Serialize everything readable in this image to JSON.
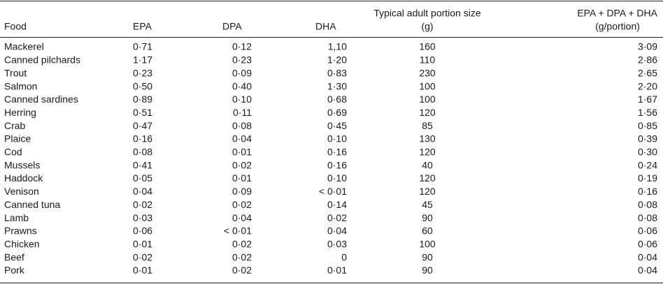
{
  "header": {
    "food": "Food",
    "epa": "EPA",
    "dpa": "DPA",
    "dha": "DHA",
    "portion": [
      "Typical adult portion size",
      "(g)"
    ],
    "total": [
      "EPA + DPA + DHA",
      "(g/portion)"
    ]
  },
  "table": {
    "rows": [
      [
        "Mackerel",
        "0·71",
        "0·12",
        "1,10",
        160,
        "3·09"
      ],
      [
        "Canned pilchards",
        "1·17",
        "0·23",
        "1·20",
        110,
        "2·86"
      ],
      [
        "Trout",
        "0·23",
        "0·09",
        "0·83",
        230,
        "2·65"
      ],
      [
        "Salmon",
        "0·50",
        "0·40",
        "1·30",
        100,
        "2·20"
      ],
      [
        "Canned sardines",
        "0·89",
        "0·10",
        "0·68",
        100,
        "1·67"
      ],
      [
        "Herring",
        "0·51",
        "0·11",
        "0·69",
        120,
        "1·56"
      ],
      [
        "Crab",
        "0·47",
        "0·08",
        "0·45",
        85,
        "0·85"
      ],
      [
        "Plaice",
        "0·16",
        "0·04",
        "0·10",
        130,
        "0·39"
      ],
      [
        "Cod",
        "0·08",
        "0·01",
        "0·16",
        120,
        "0·30"
      ],
      [
        "Mussels",
        "0·41",
        "0·02",
        "0·16",
        40,
        "0·24"
      ],
      [
        "Haddock",
        "0·05",
        "0·01",
        "0·10",
        120,
        "0·19"
      ],
      [
        "Venison",
        "0·04",
        "0·09",
        "< 0·01",
        120,
        "0·16"
      ],
      [
        "Canned tuna",
        "0·02",
        "0·02",
        "0·14",
        45,
        "0·08"
      ],
      [
        "Lamb",
        "0·03",
        "0·04",
        "0·02",
        90,
        "0·08"
      ],
      [
        "Prawns",
        "0·06",
        "< 0·01",
        "0·04",
        60,
        "0·06"
      ],
      [
        "Chicken",
        "0·01",
        "0·02",
        "0·03",
        100,
        "0·06"
      ],
      [
        "Beef",
        "0·02",
        "0·02",
        "0",
        90,
        "0·04"
      ],
      [
        "Pork",
        "0·01",
        "0·02",
        "0·01",
        90,
        "0·04"
      ]
    ]
  }
}
